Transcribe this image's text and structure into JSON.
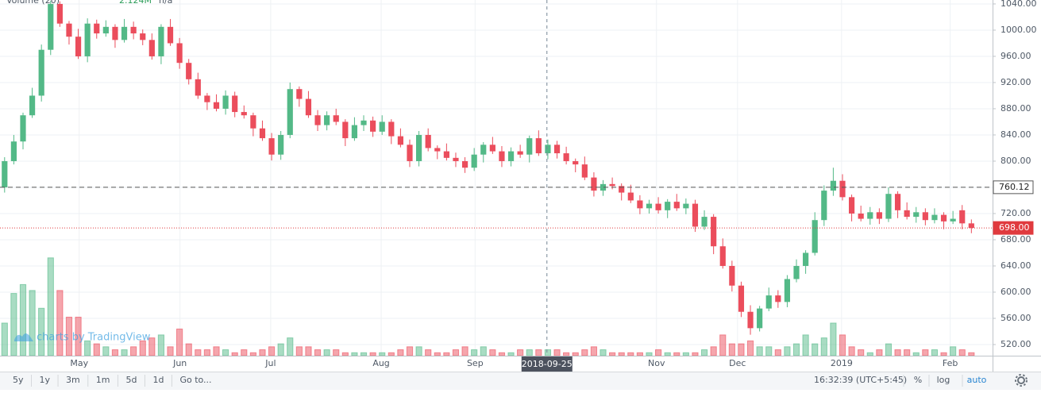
{
  "chart_data": {
    "type": "candlestick",
    "x": [
      0,
      1,
      2,
      3,
      4,
      5,
      6,
      7,
      8,
      9,
      10,
      11,
      12,
      13,
      14,
      15,
      16,
      17,
      18,
      19,
      20,
      21,
      22,
      23,
      24,
      25,
      26,
      27,
      28,
      29,
      30,
      31,
      32,
      33,
      34,
      35,
      36,
      37,
      38,
      39,
      40,
      41,
      42,
      43,
      44,
      45,
      46,
      47,
      48,
      49,
      50,
      51,
      52,
      53,
      54,
      55,
      56,
      57,
      58,
      59,
      60,
      61,
      62,
      63,
      64,
      65,
      66,
      67,
      68,
      69,
      70,
      71,
      72,
      73,
      74,
      75,
      76,
      77,
      78,
      79,
      80,
      81,
      82,
      83,
      84,
      85,
      86,
      87,
      88,
      89,
      90,
      91,
      92,
      93,
      94,
      95,
      96,
      97,
      98,
      99,
      100,
      101,
      102,
      103,
      104,
      105
    ],
    "open": [
      760,
      800,
      830,
      870,
      900,
      970,
      1040,
      1010,
      990,
      960,
      1010,
      995,
      1005,
      985,
      1005,
      995,
      985,
      960,
      1005,
      980,
      950,
      925,
      900,
      890,
      880,
      900,
      875,
      870,
      850,
      835,
      810,
      840,
      910,
      895,
      870,
      855,
      870,
      860,
      835,
      855,
      862,
      845,
      860,
      838,
      825,
      800,
      840,
      820,
      815,
      805,
      800,
      790,
      810,
      825,
      815,
      800,
      815,
      810,
      835,
      812,
      825,
      812,
      800,
      795,
      775,
      755,
      765,
      762,
      752,
      740,
      728,
      735,
      725,
      738,
      728,
      735,
      700,
      715,
      670,
      640,
      610,
      570,
      545,
      575,
      595,
      585,
      620,
      640,
      660,
      710,
      755,
      770,
      745,
      720,
      712,
      722,
      712,
      750,
      725,
      715,
      722,
      710,
      718,
      708,
      725,
      705
    ],
    "high": [
      806,
      840,
      874,
      912,
      978,
      1045,
      1044,
      1014,
      1002,
      1018,
      1016,
      1015,
      1009,
      1017,
      1013,
      1001,
      995,
      1009,
      1017,
      988,
      956,
      935,
      904,
      902,
      908,
      906,
      885,
      874,
      862,
      843,
      846,
      920,
      914,
      907,
      878,
      876,
      880,
      864,
      867,
      870,
      868,
      870,
      864,
      850,
      833,
      846,
      850,
      824,
      827,
      813,
      806,
      820,
      829,
      837,
      823,
      821,
      825,
      839,
      847,
      833,
      831,
      822,
      804,
      807,
      783,
      771,
      775,
      766,
      764,
      748,
      741,
      745,
      742,
      750,
      743,
      741,
      725,
      719,
      682,
      648,
      616,
      580,
      579,
      607,
      603,
      626,
      650,
      664,
      722,
      763,
      790,
      780,
      749,
      732,
      730,
      728,
      760,
      754,
      737,
      730,
      728,
      728,
      722,
      724,
      733,
      711
    ],
    "low": [
      752,
      795,
      818,
      866,
      891,
      962,
      1005,
      978,
      956,
      951,
      987,
      990,
      973,
      981,
      986,
      977,
      955,
      948,
      976,
      941,
      917,
      895,
      878,
      876,
      871,
      867,
      865,
      838,
      831,
      801,
      802,
      835,
      883,
      866,
      846,
      847,
      855,
      823,
      831,
      846,
      837,
      840,
      826,
      821,
      791,
      792,
      815,
      803,
      801,
      791,
      782,
      785,
      798,
      811,
      791,
      792,
      805,
      798,
      808,
      803,
      804,
      795,
      783,
      771,
      746,
      747,
      757,
      740,
      736,
      719,
      720,
      720,
      713,
      724,
      719,
      692,
      695,
      658,
      636,
      601,
      562,
      535,
      540,
      571,
      576,
      577,
      615,
      628,
      656,
      701,
      747,
      740,
      708,
      708,
      703,
      704,
      707,
      713,
      711,
      706,
      702,
      705,
      696,
      704,
      696,
      690
    ],
    "close": [
      800,
      830,
      870,
      900,
      970,
      1040,
      1010,
      990,
      960,
      1010,
      995,
      1005,
      985,
      1005,
      995,
      985,
      960,
      1005,
      980,
      950,
      925,
      900,
      890,
      880,
      900,
      875,
      870,
      850,
      835,
      810,
      840,
      910,
      895,
      870,
      855,
      870,
      860,
      835,
      855,
      862,
      845,
      860,
      838,
      825,
      800,
      840,
      820,
      815,
      805,
      800,
      790,
      810,
      825,
      815,
      800,
      815,
      810,
      835,
      812,
      825,
      812,
      800,
      795,
      775,
      755,
      765,
      762,
      752,
      740,
      728,
      735,
      725,
      738,
      728,
      735,
      700,
      715,
      670,
      640,
      610,
      570,
      545,
      575,
      595,
      585,
      620,
      640,
      660,
      710,
      755,
      770,
      745,
      720,
      712,
      722,
      712,
      750,
      725,
      715,
      722,
      710,
      718,
      708,
      712,
      705,
      698
    ],
    "volume": [
      1.1,
      2.1,
      2.4,
      2.2,
      1.6,
      3.3,
      2.2,
      1.3,
      1.3,
      0.5,
      0.4,
      0.3,
      0.2,
      0.2,
      0.3,
      0.5,
      0.6,
      0.7,
      0.3,
      0.9,
      0.4,
      0.2,
      0.2,
      0.3,
      0.2,
      0.1,
      0.2,
      0.1,
      0.2,
      0.3,
      0.4,
      0.6,
      0.3,
      0.3,
      0.2,
      0.2,
      0.2,
      0.1,
      0.1,
      0.1,
      0.1,
      0.1,
      0.1,
      0.2,
      0.3,
      0.3,
      0.2,
      0.1,
      0.1,
      0.2,
      0.3,
      0.2,
      0.3,
      0.2,
      0.1,
      0.1,
      0.2,
      0.2,
      0.2,
      0.2,
      0.2,
      0.1,
      0.1,
      0.2,
      0.3,
      0.2,
      0.1,
      0.1,
      0.1,
      0.1,
      0.1,
      0.2,
      0.1,
      0.1,
      0.1,
      0.1,
      0.2,
      0.3,
      0.7,
      0.4,
      0.4,
      0.5,
      0.3,
      0.3,
      0.2,
      0.3,
      0.4,
      0.7,
      0.4,
      0.6,
      1.1,
      0.7,
      0.3,
      0.2,
      0.1,
      0.2,
      0.4,
      0.2,
      0.2,
      0.1,
      0.2,
      0.2,
      0.1,
      0.3,
      0.2,
      0.1
    ],
    "up_color": "#53b987",
    "down_color": "#eb4d5c",
    "xlim": [
      -0.5,
      107.3
    ],
    "ylim": [
      503,
      1046
    ],
    "y2lim": [
      0,
      12
    ],
    "grid": true,
    "xticks": [
      {
        "value": 8.1,
        "label": "May"
      },
      {
        "value": 19.05,
        "label": "Jun"
      },
      {
        "value": 28.9,
        "label": "Jul"
      },
      {
        "value": 40.9,
        "label": "Aug"
      },
      {
        "value": 51.1,
        "label": "Sep"
      },
      {
        "value": 70.8,
        "label": "Nov"
      },
      {
        "value": 79.6,
        "label": "Dec"
      },
      {
        "value": 90.9,
        "label": "2019"
      },
      {
        "value": 102.7,
        "label": "Feb"
      }
    ],
    "yticks": [
      {
        "value": 520,
        "label": "520.00"
      },
      {
        "value": 560,
        "label": "560.00"
      },
      {
        "value": 600,
        "label": "600.00"
      },
      {
        "value": 640,
        "label": "640.00"
      },
      {
        "value": 680,
        "label": "680.00"
      },
      {
        "value": 720,
        "label": "720.00"
      },
      {
        "value": 760,
        "label": "760.00"
      },
      {
        "value": 800,
        "label": "800.00"
      },
      {
        "value": 840,
        "label": "840.00"
      },
      {
        "value": 880,
        "label": "880.00"
      },
      {
        "value": 920,
        "label": "920.00"
      },
      {
        "value": 960,
        "label": "960.00"
      },
      {
        "value": 1000,
        "label": "1000.00"
      },
      {
        "value": 1040,
        "label": "1040.00"
      }
    ],
    "price_lines": [
      {
        "value": 760.12,
        "label": "760.12",
        "color": "#555555",
        "style": "dashed"
      },
      {
        "value": 698,
        "label": "698.00",
        "color": "#e03a3e",
        "style": "dotted"
      }
    ],
    "crosshair": {
      "x": 58.9,
      "label": "2018-09-25"
    },
    "legend": {
      "name": "Volume (20)",
      "value": "2.124M",
      "extra": "n/a"
    },
    "watermark": "charts by TradingView"
  },
  "ui": {
    "ranges": [
      "5y",
      "1y",
      "3m",
      "1m",
      "5d",
      "1d",
      "Go to..."
    ],
    "time": "16:32:39 (UTC+5:45)",
    "options": [
      "%",
      "log",
      "auto"
    ]
  }
}
